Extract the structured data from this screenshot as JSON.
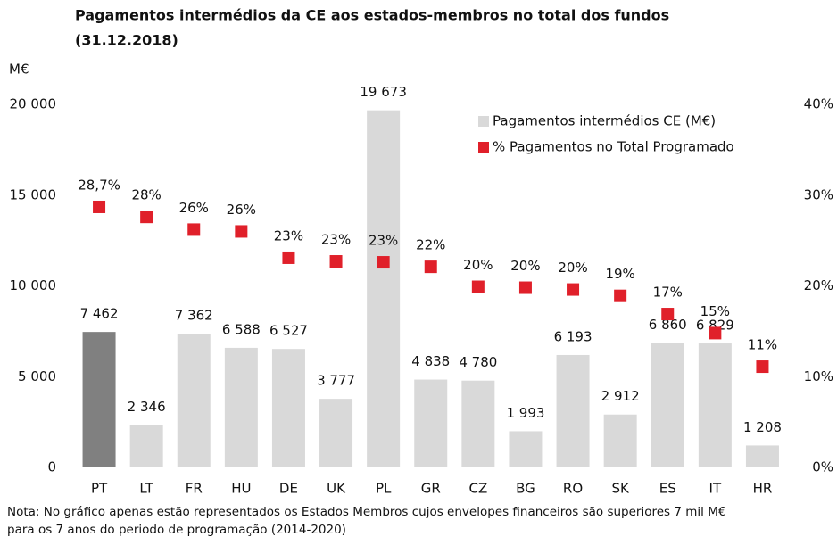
{
  "chart_data": {
    "type": "bar",
    "title": "Pagamentos intermédios da CE aos estados-membros no total dos fundos",
    "subtitle": "(31.12.2018)",
    "y_label": "M€",
    "categories": [
      "PT",
      "LT",
      "FR",
      "HU",
      "DE",
      "UK",
      "PL",
      "GR",
      "CZ",
      "BG",
      "RO",
      "SK",
      "ES",
      "IT",
      "HR"
    ],
    "series": [
      {
        "name": "Pagamentos intermédios CE (M€)",
        "type": "bar",
        "color": "#d9d9d9",
        "colors": [
          "#808080",
          "#d9d9d9",
          "#d9d9d9",
          "#d9d9d9",
          "#d9d9d9",
          "#d9d9d9",
          "#d9d9d9",
          "#d9d9d9",
          "#d9d9d9",
          "#d9d9d9",
          "#d9d9d9",
          "#d9d9d9",
          "#d9d9d9",
          "#d9d9d9",
          "#d9d9d9"
        ],
        "values": [
          7462,
          2346,
          7362,
          6588,
          6527,
          3777,
          19673,
          4838,
          4780,
          1993,
          6193,
          2912,
          6860,
          6829,
          1208
        ],
        "value_labels": [
          "7 462",
          "2 346",
          "7 362",
          "6 588",
          "6 527",
          "3 777",
          "19 673",
          "4 838",
          "4 780",
          "1 993",
          "6 193",
          "2 912",
          "6 860",
          "6 829",
          "1 208"
        ]
      },
      {
        "name": "% Pagamentos no Total Programado",
        "type": "scatter",
        "axis": "y2",
        "color": "#e0202a",
        "values": [
          28.7,
          27.6,
          26.2,
          26.0,
          23.1,
          22.7,
          22.6,
          22.1,
          19.9,
          19.8,
          19.6,
          18.9,
          16.9,
          14.8,
          11.1
        ],
        "value_labels": [
          "28,7%",
          "28%",
          "26%",
          "26%",
          "23%",
          "23%",
          "23%",
          "22%",
          "20%",
          "20%",
          "20%",
          "19%",
          "17%",
          "15%",
          "11%"
        ]
      }
    ],
    "ylim": [
      0,
      20000
    ],
    "yticks": [
      0,
      {
        "value": 5000,
        "label": "5 000"
      },
      {
        "value": 10000,
        "label": "10 000"
      },
      {
        "value": 15000,
        "label": "15 000"
      },
      {
        "value": 20000,
        "label": "20 000"
      }
    ],
    "y2lim": [
      0,
      40
    ],
    "y2ticks": [
      {
        "value": 0,
        "label": "0%"
      },
      {
        "value": 10,
        "label": "10%"
      },
      {
        "value": 20,
        "label": "20%"
      },
      {
        "value": 30,
        "label": "30%"
      },
      {
        "value": 40,
        "label": "40%"
      }
    ],
    "legend": "top-right",
    "note": [
      "Nota: No gráfico apenas estão representados os Estados Membros cujos envelopes financeiros são superiores 7 mil M€",
      "para os 7 anos do periodo de programação (2014-2020)"
    ]
  }
}
